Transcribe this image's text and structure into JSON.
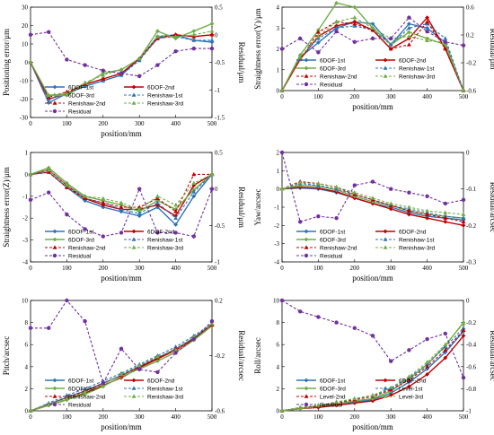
{
  "colors": {
    "dof1": "#2e75b6",
    "dof2": "#c00000",
    "dof3": "#70ad47",
    "ren1": "#2e75b6",
    "ren2": "#c00000",
    "ren3": "#70ad47",
    "resid": "#7030a0"
  },
  "chart_data": [
    {
      "type": "line",
      "xlabel": "position/mm",
      "ylabel": "Positioning error/μm",
      "y2label": "Residual/μm",
      "xlim": [
        0,
        500
      ],
      "xticks": [
        0,
        100,
        200,
        300,
        400,
        500
      ],
      "ylim": [
        -30,
        30
      ],
      "yticks": [
        -30,
        -20,
        -10,
        0,
        10,
        20,
        30
      ],
      "y2lim": [
        -1.5,
        0.5
      ],
      "y2ticks": [
        -1.5,
        -1,
        -0.5,
        0,
        0.5
      ],
      "legend": "inside-bottom",
      "x": [
        0,
        50,
        100,
        150,
        200,
        250,
        300,
        350,
        400,
        450,
        500
      ],
      "series": [
        {
          "name": "6DOF-1st",
          "key": "dof1",
          "dash": false,
          "marker": "diamond",
          "values": [
            0,
            -22,
            -17,
            -13,
            -10,
            -7,
            2,
            14,
            15,
            12,
            11
          ]
        },
        {
          "name": "6DOF-2nd",
          "key": "dof2",
          "dash": false,
          "marker": "diamond",
          "values": [
            0,
            -20,
            -17,
            -12,
            -9,
            -6,
            2,
            13,
            15,
            14,
            15
          ]
        },
        {
          "name": "6DOF-3rd",
          "key": "dof3",
          "dash": false,
          "marker": "diamond",
          "values": [
            0,
            -18,
            -18,
            -12,
            -6,
            -4,
            2,
            17,
            13,
            17,
            21
          ]
        },
        {
          "name": "Renishaw-1st",
          "key": "ren1",
          "dash": true,
          "marker": "triangle",
          "values": [
            0,
            -20,
            -17,
            -13,
            -10,
            -7,
            1,
            13,
            14,
            12,
            12
          ]
        },
        {
          "name": "Renishaw-2nd",
          "key": "ren2",
          "dash": true,
          "marker": "triangle",
          "values": [
            0,
            -19,
            -16,
            -12,
            -9,
            -6,
            2,
            13,
            15,
            14,
            15
          ]
        },
        {
          "name": "Renishaw-3rd",
          "key": "ren3",
          "dash": true,
          "marker": "triangle",
          "values": [
            0,
            -18,
            -17,
            -11,
            -7,
            -4,
            2,
            14,
            14,
            15,
            17
          ]
        },
        {
          "name": "Residual",
          "key": "resid",
          "dash": true,
          "marker": "circle",
          "axis": "y2",
          "values": [
            0,
            0.05,
            -0.45,
            -0.55,
            -0.65,
            -0.7,
            -0.75,
            -0.55,
            -0.3,
            -0.25,
            -0.25
          ]
        }
      ]
    },
    {
      "type": "line",
      "xlabel": "position/mm",
      "ylabel": "Straightness error(Y)/μm",
      "y2label": "Residual/μm",
      "xlim": [
        0,
        500
      ],
      "xticks": [
        0,
        100,
        200,
        300,
        400,
        500
      ],
      "ylim": [
        0,
        4
      ],
      "yticks": [
        0,
        1,
        2,
        3,
        4
      ],
      "y2lim": [
        -0.6,
        0.6
      ],
      "y2ticks": [
        -0.6,
        -0.2,
        0.2,
        0.6
      ],
      "legend": "inside-bottom",
      "x": [
        0,
        50,
        100,
        150,
        200,
        250,
        300,
        350,
        400,
        450,
        500
      ],
      "series": [
        {
          "name": "6DOF-1st",
          "key": "dof1",
          "dash": false,
          "marker": "diamond",
          "values": [
            0,
            1.6,
            2.3,
            3.0,
            3.3,
            3.2,
            2.2,
            3.2,
            3.0,
            2.3,
            0
          ]
        },
        {
          "name": "6DOF-2nd",
          "key": "dof2",
          "dash": false,
          "marker": "diamond",
          "values": [
            0,
            1.5,
            2.6,
            3.1,
            3.3,
            2.9,
            2.0,
            2.5,
            3.5,
            2.0,
            0
          ]
        },
        {
          "name": "6DOF-3rd",
          "key": "dof3",
          "dash": false,
          "marker": "diamond",
          "values": [
            0,
            1.7,
            2.9,
            4.2,
            4.0,
            3.0,
            2.2,
            2.8,
            2.5,
            2.2,
            0
          ]
        },
        {
          "name": "Renishaw-1st",
          "key": "ren1",
          "dash": true,
          "marker": "triangle",
          "values": [
            0,
            1.6,
            2.5,
            3.0,
            3.1,
            2.9,
            2.2,
            3.0,
            3.2,
            2.5,
            0
          ]
        },
        {
          "name": "Renishaw-2nd",
          "key": "ren2",
          "dash": true,
          "marker": "triangle",
          "values": [
            0,
            1.5,
            2.8,
            3.3,
            3.2,
            2.9,
            2.0,
            2.2,
            3.3,
            2.0,
            0
          ]
        },
        {
          "name": "Renishaw-3rd",
          "key": "ren3",
          "dash": true,
          "marker": "triangle",
          "values": [
            0,
            1.6,
            2.6,
            3.3,
            3.5,
            3.0,
            2.5,
            2.6,
            2.4,
            2.3,
            0
          ]
        },
        {
          "name": "Residual",
          "key": "resid",
          "dash": true,
          "marker": "circle",
          "axis": "y2",
          "values": [
            0,
            0.15,
            -0.05,
            0.25,
            0.1,
            0.15,
            0.15,
            0.45,
            0.25,
            0.1,
            0.05
          ]
        }
      ]
    },
    {
      "type": "line",
      "xlabel": "position/mm",
      "ylabel": "Straightness error(Z)/μm",
      "y2label": "Residual/μm",
      "xlim": [
        0,
        500
      ],
      "xticks": [
        0,
        100,
        200,
        300,
        400,
        500
      ],
      "ylim": [
        -4,
        1
      ],
      "yticks": [
        -4,
        -3,
        -2,
        -1,
        0,
        1
      ],
      "y2lim": [
        -1,
        0.5
      ],
      "y2ticks": [
        -1,
        -0.5,
        0,
        0.5
      ],
      "legend": "inside-bottom",
      "x": [
        0,
        50,
        100,
        150,
        200,
        250,
        300,
        350,
        400,
        450,
        500
      ],
      "series": [
        {
          "name": "6DOF-1st",
          "key": "dof1",
          "dash": false,
          "marker": "diamond",
          "values": [
            0,
            0.1,
            -0.6,
            -1.2,
            -1.5,
            -1.7,
            -1.9,
            -1.5,
            -2.3,
            -1.0,
            0
          ]
        },
        {
          "name": "6DOF-2nd",
          "key": "dof2",
          "dash": false,
          "marker": "diamond",
          "values": [
            0,
            0.2,
            -0.5,
            -1.1,
            -1.4,
            -1.6,
            -1.6,
            -1.4,
            -1.9,
            -0.5,
            0
          ]
        },
        {
          "name": "6DOF-3rd",
          "key": "dof3",
          "dash": false,
          "marker": "diamond",
          "values": [
            0,
            0.3,
            -0.4,
            -1.0,
            -1.2,
            -1.4,
            -1.7,
            -1.2,
            -1.6,
            -0.7,
            0
          ]
        },
        {
          "name": "Renishaw-1st",
          "key": "ren1",
          "dash": true,
          "marker": "triangle",
          "values": [
            0,
            0.2,
            -0.5,
            -1.1,
            -1.3,
            -1.6,
            -1.8,
            -1.3,
            -2.0,
            -0.8,
            0
          ]
        },
        {
          "name": "Renishaw-2nd",
          "key": "ren2",
          "dash": true,
          "marker": "triangle",
          "values": [
            0,
            0.1,
            -0.6,
            -1.1,
            -1.3,
            -1.5,
            -1.5,
            -1.1,
            -1.7,
            0.0,
            0
          ]
        },
        {
          "name": "Renishaw-3rd",
          "key": "ren3",
          "dash": true,
          "marker": "triangle",
          "values": [
            0,
            0.2,
            -0.5,
            -1.0,
            -1.1,
            -1.3,
            -1.6,
            -1.0,
            -1.4,
            -0.4,
            0
          ]
        },
        {
          "name": "Residual",
          "key": "resid",
          "dash": true,
          "marker": "circle",
          "axis": "y2",
          "values": [
            -0.15,
            -0.05,
            -0.35,
            -0.55,
            -0.65,
            -0.6,
            0.0,
            -0.6,
            -0.6,
            -0.65,
            0.0
          ]
        }
      ]
    },
    {
      "type": "line",
      "xlabel": "position/mm",
      "ylabel": "Yaw/arcsec",
      "y2label": "Residual/arcsec",
      "xlim": [
        0,
        500
      ],
      "xticks": [
        0,
        100,
        200,
        300,
        400,
        500
      ],
      "ylim": [
        -4,
        2
      ],
      "yticks": [
        -4,
        -3,
        -2,
        -1,
        0,
        1,
        2
      ],
      "y2lim": [
        -0.3,
        0
      ],
      "y2ticks": [
        -0.3,
        -0.2,
        -0.1,
        0
      ],
      "legend": "inside-bottom",
      "x": [
        0,
        50,
        100,
        150,
        200,
        250,
        300,
        350,
        400,
        450,
        500
      ],
      "series": [
        {
          "name": "6DOF-1st",
          "key": "dof1",
          "dash": false,
          "marker": "diamond",
          "values": [
            0,
            0.05,
            0.0,
            -0.2,
            -0.5,
            -0.8,
            -1.0,
            -1.3,
            -1.5,
            -1.6,
            -1.7
          ]
        },
        {
          "name": "6DOF-2nd",
          "key": "dof2",
          "dash": false,
          "marker": "diamond",
          "values": [
            0,
            0.1,
            0.05,
            -0.15,
            -0.5,
            -0.8,
            -1.1,
            -1.4,
            -1.6,
            -1.8,
            -2.0
          ]
        },
        {
          "name": "6DOF-3rd",
          "key": "dof3",
          "dash": false,
          "marker": "diamond",
          "values": [
            0,
            0.2,
            0.15,
            -0.05,
            -0.4,
            -0.7,
            -0.9,
            -1.2,
            -1.4,
            -1.5,
            -1.6
          ]
        },
        {
          "name": "Renishaw-1st",
          "key": "ren1",
          "dash": true,
          "marker": "triangle",
          "values": [
            0,
            0.3,
            0.2,
            0.0,
            -0.3,
            -0.6,
            -0.9,
            -1.1,
            -1.3,
            -1.5,
            -1.6
          ]
        },
        {
          "name": "Renishaw-2nd",
          "key": "ren2",
          "dash": true,
          "marker": "triangle",
          "values": [
            0,
            0.4,
            0.3,
            0.1,
            -0.3,
            -0.6,
            -0.9,
            -1.2,
            -1.4,
            -1.6,
            -1.8
          ]
        },
        {
          "name": "Renishaw-3rd",
          "key": "ren3",
          "dash": true,
          "marker": "triangle",
          "values": [
            0,
            0.35,
            0.3,
            0.1,
            -0.2,
            -0.5,
            -0.8,
            -1.0,
            -1.2,
            -1.3,
            -1.4
          ]
        },
        {
          "name": "Residual",
          "key": "resid",
          "dash": true,
          "marker": "circle",
          "axis": "y2",
          "values": [
            0,
            -0.19,
            -0.175,
            -0.18,
            -0.09,
            -0.08,
            -0.1,
            -0.11,
            -0.12,
            -0.14,
            -0.13
          ]
        }
      ]
    },
    {
      "type": "line",
      "xlabel": "position/mm",
      "ylabel": "Pitch/arcsec",
      "y2label": "Residual/arcsec",
      "xlim": [
        0,
        500
      ],
      "xticks": [
        0,
        100,
        200,
        300,
        400,
        500
      ],
      "ylim": [
        0,
        10
      ],
      "yticks": [
        0,
        2,
        4,
        6,
        8,
        10
      ],
      "y2lim": [
        -0.6,
        0.2
      ],
      "y2ticks": [
        -0.6,
        -0.2,
        0.2
      ],
      "legend": "inside-bottom",
      "x": [
        0,
        50,
        100,
        150,
        200,
        250,
        300,
        350,
        400,
        450,
        500
      ],
      "series": [
        {
          "name": "6DOF-1st",
          "key": "dof1",
          "dash": false,
          "marker": "diamond",
          "values": [
            0,
            0.6,
            1.2,
            1.8,
            2.5,
            3.2,
            4.0,
            4.8,
            5.6,
            6.6,
            7.8
          ]
        },
        {
          "name": "6DOF-2nd",
          "key": "dof2",
          "dash": false,
          "marker": "diamond",
          "values": [
            0,
            0.5,
            1.0,
            1.6,
            2.3,
            3.0,
            3.9,
            4.7,
            5.5,
            6.5,
            7.7
          ]
        },
        {
          "name": "6DOF-3rd",
          "key": "dof3",
          "dash": false,
          "marker": "diamond",
          "values": [
            0,
            0.5,
            1.0,
            1.5,
            2.2,
            3.1,
            3.8,
            4.5,
            5.3,
            6.4,
            7.7
          ]
        },
        {
          "name": "Renishaw-1st",
          "key": "ren1",
          "dash": true,
          "marker": "triangle",
          "values": [
            0,
            0.7,
            1.4,
            2.0,
            2.7,
            3.4,
            4.2,
            5.0,
            5.8,
            6.8,
            7.9
          ]
        },
        {
          "name": "Renishaw-2nd",
          "key": "ren2",
          "dash": true,
          "marker": "triangle",
          "values": [
            0,
            0.6,
            1.2,
            1.8,
            2.5,
            3.2,
            4.0,
            4.8,
            5.6,
            6.6,
            7.8
          ]
        },
        {
          "name": "Renishaw-3rd",
          "key": "ren3",
          "dash": true,
          "marker": "triangle",
          "values": [
            0,
            0.6,
            1.1,
            1.7,
            2.4,
            3.3,
            4.1,
            4.9,
            5.5,
            6.7,
            7.9
          ]
        },
        {
          "name": "Residual",
          "key": "resid",
          "dash": true,
          "marker": "circle",
          "axis": "y2",
          "values": [
            0.0,
            0.0,
            0.2,
            0.05,
            -0.4,
            -0.15,
            -0.3,
            -0.32,
            -0.18,
            -0.08,
            0.05
          ]
        }
      ]
    },
    {
      "type": "line",
      "xlabel": "position/mm",
      "ylabel": "Roll/arcsec",
      "y2label": "Residual/arcsec",
      "xlim": [
        0,
        500
      ],
      "xticks": [
        0,
        100,
        200,
        300,
        400,
        500
      ],
      "ylim": [
        0,
        10
      ],
      "yticks": [
        0,
        2,
        4,
        6,
        8,
        10
      ],
      "y2lim": [
        -1,
        0
      ],
      "y2ticks": [
        -1,
        -0.8,
        -0.6,
        -0.4,
        -0.2,
        0
      ],
      "legend": "inside-bottom",
      "x": [
        0,
        50,
        100,
        150,
        200,
        250,
        300,
        350,
        400,
        450,
        500
      ],
      "series": [
        {
          "name": "6DOF-1st",
          "key": "dof1",
          "dash": false,
          "marker": "diamond",
          "values": [
            0,
            0.2,
            0.4,
            0.6,
            0.8,
            1.0,
            1.6,
            2.6,
            3.8,
            5.3,
            7.2
          ]
        },
        {
          "name": "6DOF-2nd",
          "key": "dof2",
          "dash": false,
          "marker": "diamond",
          "values": [
            0,
            0.2,
            0.3,
            0.5,
            0.7,
            0.9,
            1.4,
            2.2,
            3.3,
            4.8,
            6.8
          ]
        },
        {
          "name": "6DOF-3rd",
          "key": "dof3",
          "dash": false,
          "marker": "diamond",
          "values": [
            0,
            0.2,
            0.4,
            0.6,
            0.9,
            1.1,
            1.8,
            2.9,
            4.2,
            5.9,
            8.0
          ]
        },
        {
          "name": "Level-1st",
          "key": "ren1",
          "dash": true,
          "marker": "triangle",
          "values": [
            0,
            0.3,
            0.5,
            0.8,
            1.1,
            1.4,
            2.0,
            3.0,
            4.2,
            5.8,
            7.5
          ]
        },
        {
          "name": "Level-2nd",
          "key": "ren2",
          "dash": true,
          "marker": "triangle",
          "values": [
            0,
            0.3,
            0.4,
            0.7,
            1.0,
            1.3,
            1.9,
            2.8,
            4.0,
            5.5,
            7.3
          ]
        },
        {
          "name": "Level-3rd",
          "key": "ren3",
          "dash": true,
          "marker": "triangle",
          "values": [
            0,
            0.3,
            0.5,
            0.8,
            1.1,
            1.4,
            2.1,
            3.1,
            4.4,
            6.0,
            7.9
          ]
        },
        {
          "name": "Residual",
          "key": "resid",
          "dash": true,
          "marker": "circle",
          "axis": "y2",
          "values": [
            0,
            -0.1,
            -0.15,
            -0.2,
            -0.25,
            -0.32,
            -0.55,
            -0.45,
            -0.35,
            -0.3,
            -0.7
          ]
        }
      ]
    }
  ]
}
